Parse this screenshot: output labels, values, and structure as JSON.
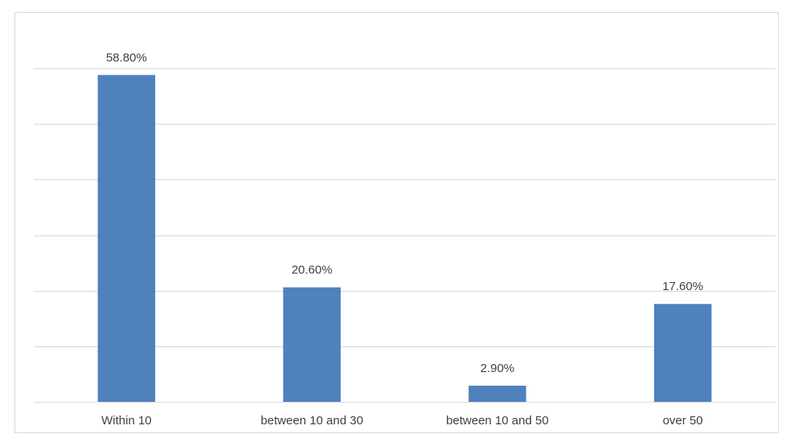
{
  "chart_data": {
    "type": "bar",
    "categories": [
      "Within 10",
      "between 10 and 30",
      "between 10 and 50",
      "over 50"
    ],
    "values": [
      58.8,
      20.6,
      2.9,
      17.6
    ],
    "value_labels": [
      "58.80%",
      "20.60%",
      "2.90%",
      "17.60%"
    ],
    "color": "#4f81bd",
    "ylim": [
      0,
      60
    ],
    "yticks": [
      0,
      10,
      20,
      30,
      40,
      50,
      60
    ],
    "grid": true
  }
}
